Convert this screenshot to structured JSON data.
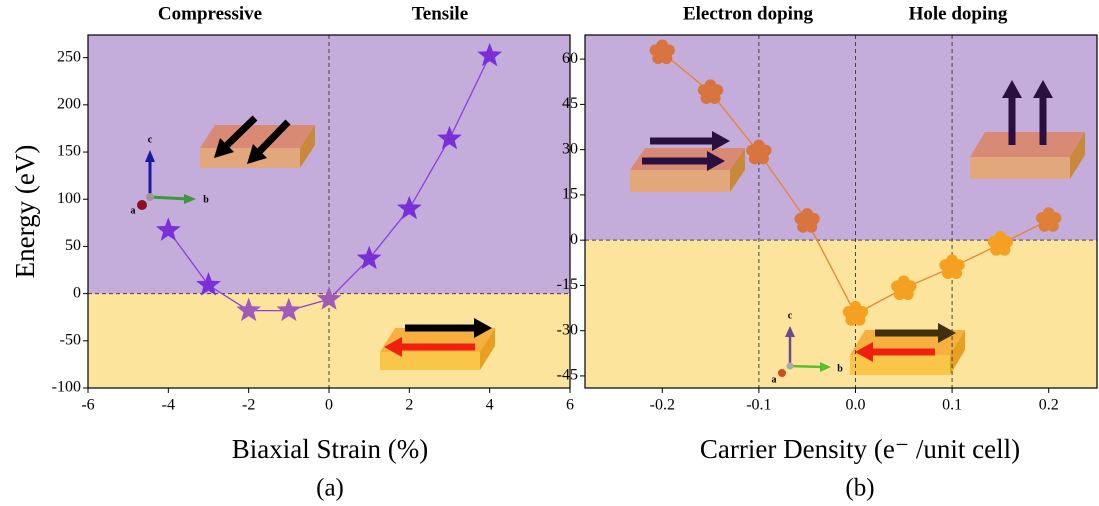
{
  "chart_data": [
    {
      "type": "line",
      "marker": "star",
      "title_left": "Compressive",
      "title_right": "Tensile",
      "x_label": "Biaxial Strain (%)",
      "y_label": "Energy (eV)",
      "panel_label": "(a)",
      "x": [
        -4,
        -3,
        -2,
        -1,
        0,
        1,
        2,
        3,
        4
      ],
      "series": [
        {
          "color": "#8a3fe0",
          "values": [
            67,
            9,
            -18,
            -18,
            -6,
            37,
            90,
            164,
            252
          ],
          "marker_colors": [
            "#7a2fd8",
            "#7a2fd8",
            "#a05cb8",
            "#a05cb8",
            "#a05cb8",
            "#7a2fd8",
            "#7a2fd8",
            "#7a2fd8",
            "#7a2fd8"
          ]
        }
      ],
      "xlim": [
        -6,
        6
      ],
      "xticks": [
        -6,
        -4,
        -2,
        0,
        2,
        4,
        6
      ],
      "ylim": [
        -100,
        274
      ],
      "yticks": [
        -100,
        -50,
        0,
        50,
        100,
        150,
        200,
        250
      ],
      "vlines": [
        0
      ],
      "hline": 0,
      "region_colors": [
        "#c4acdb",
        "#fde49c"
      ],
      "annotations": [
        "c",
        "a",
        "b"
      ]
    },
    {
      "type": "line",
      "marker": "flower",
      "title_left": "Electron doping",
      "title_right": "Hole doping",
      "x_label": "Carrier Density (e⁻ /unit cell)",
      "panel_label": "(b)",
      "x": [
        -0.2,
        -0.15,
        -0.1,
        -0.05,
        0,
        0.05,
        0.1,
        0.15,
        0.2
      ],
      "series": [
        {
          "color": "#e8832e",
          "values": [
            62.2,
            49,
            29,
            6.3,
            -24.5,
            -16,
            -9,
            -1.3,
            6.6
          ],
          "marker_colors": [
            "#d9743f",
            "#d9743f",
            "#d9743f",
            "#d9743f",
            "#f5a020",
            "#f5a020",
            "#f5a020",
            "#f5a020",
            "#e07f38"
          ]
        }
      ],
      "xlim": [
        -0.28,
        0.25
      ],
      "xticks": [
        -0.2,
        -0.1,
        {
          "value": 0,
          "label": "0.0"
        },
        0.1,
        0.2
      ],
      "ylim": [
        -49,
        68
      ],
      "yticks": [
        -45,
        -30,
        -15,
        0,
        15,
        30,
        45,
        60
      ],
      "vlines": [
        -0.1,
        0,
        0.1
      ],
      "hline": 0,
      "region_colors": [
        "#c4acdb",
        "#fde49c"
      ],
      "annotations": [
        "c",
        "a",
        "b"
      ]
    }
  ]
}
